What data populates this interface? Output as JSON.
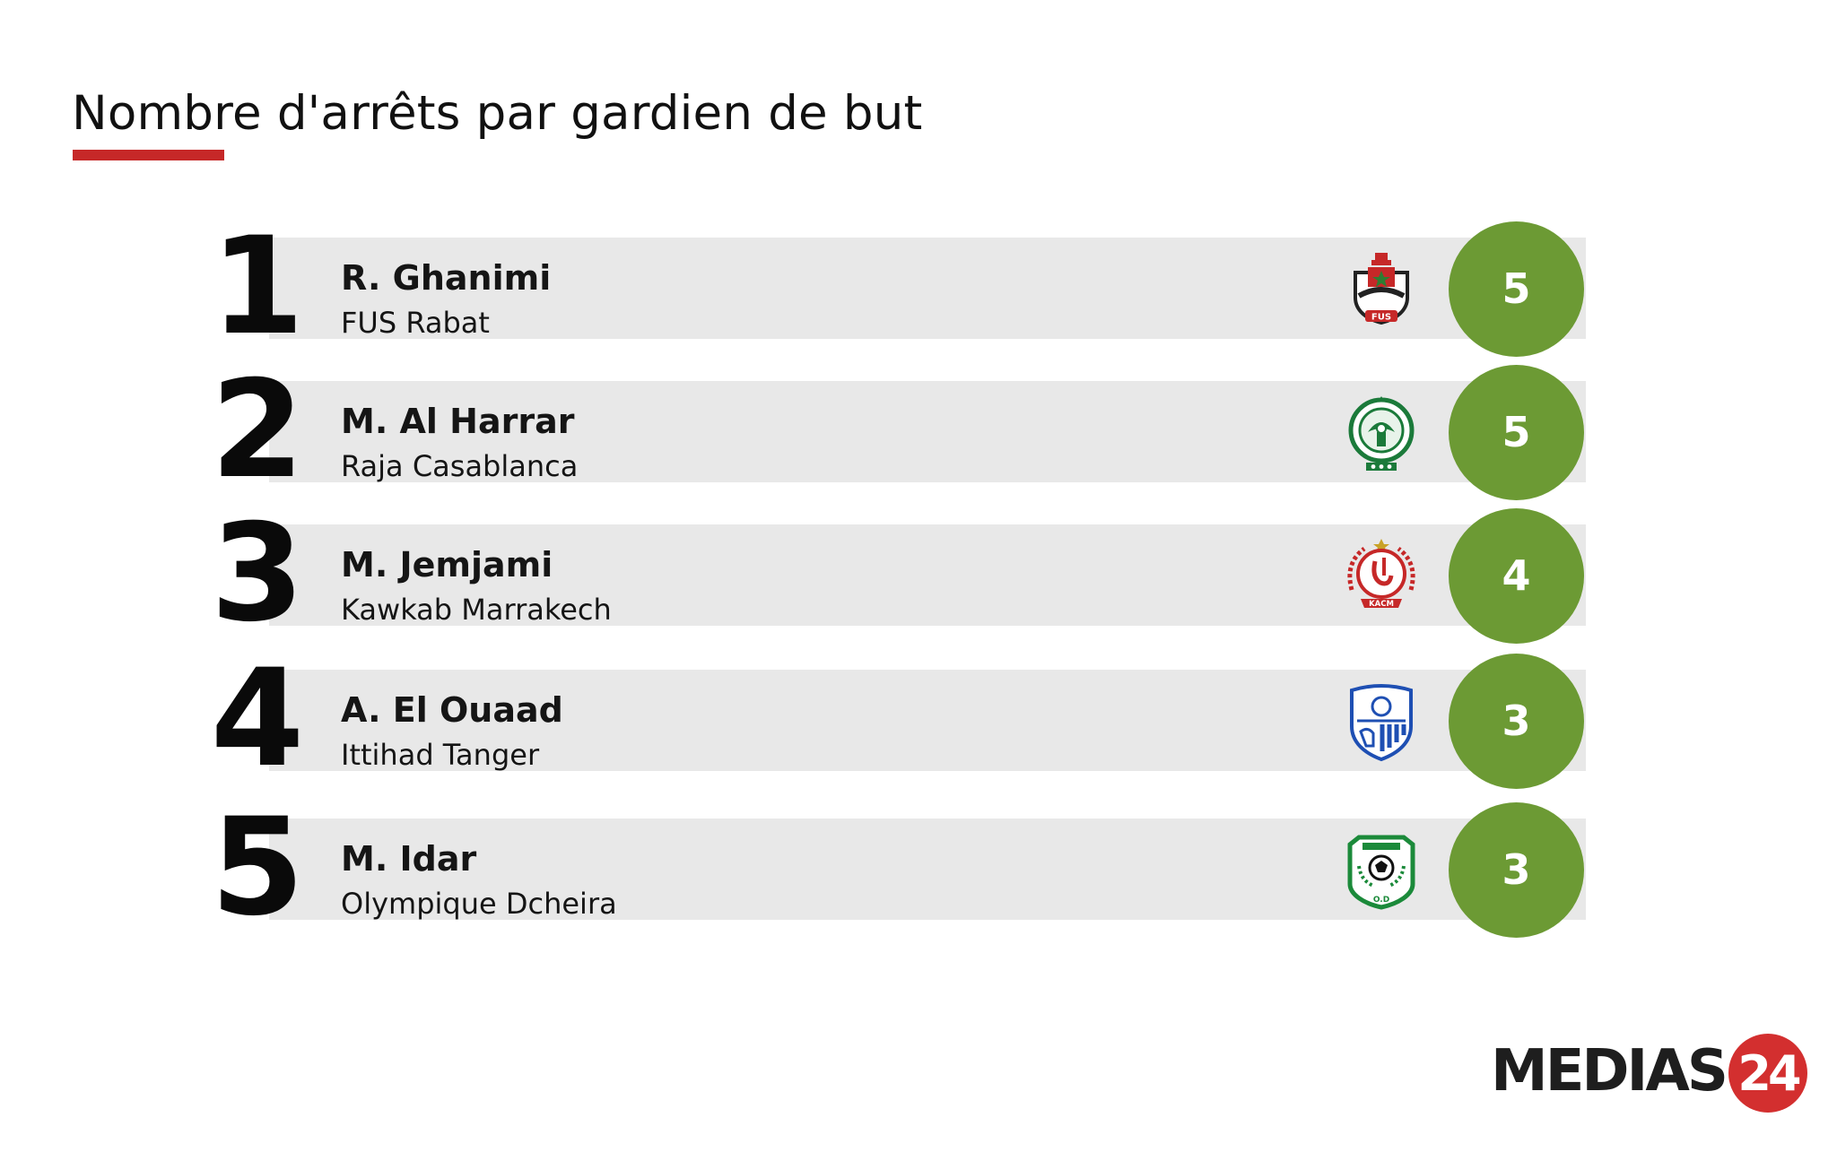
{
  "title": "Nombre d'arrêts par gardien de but",
  "chart_data": {
    "type": "bar",
    "title": "Nombre d'arrêts par gardien de but",
    "categories": [
      "R. Ghanimi",
      "M. Al Harrar",
      "M. Jemjami",
      "A. El Ouaad",
      "M. Idar"
    ],
    "values": [
      5,
      5,
      4,
      3,
      3
    ],
    "rows": [
      {
        "rank": "1",
        "player": "R. Ghanimi",
        "team": "FUS Rabat",
        "value": "5",
        "logo": "fus-rabat-crest"
      },
      {
        "rank": "2",
        "player": "M. Al Harrar",
        "team": "Raja Casablanca",
        "value": "5",
        "logo": "raja-casablanca-crest"
      },
      {
        "rank": "3",
        "player": "M. Jemjami",
        "team": "Kawkab Marrakech",
        "value": "4",
        "logo": "kacm-crest"
      },
      {
        "rank": "4",
        "player": "A. El Ouaad",
        "team": "Ittihad Tanger",
        "value": "3",
        "logo": "ittihad-tanger-crest"
      },
      {
        "rank": "5",
        "player": "M. Idar",
        "team": "Olympique Dcheira",
        "value": "3",
        "logo": "olympique-dcheira-crest"
      }
    ]
  },
  "logo_text": {
    "fus": "FUS",
    "kacm": "KACM",
    "od": "O.D"
  },
  "brand": {
    "name": "MEDIAS",
    "number": "24"
  },
  "colors": {
    "accent": "#c62828",
    "badge": "#6c9a34",
    "row_background": "#e8e8e8"
  }
}
